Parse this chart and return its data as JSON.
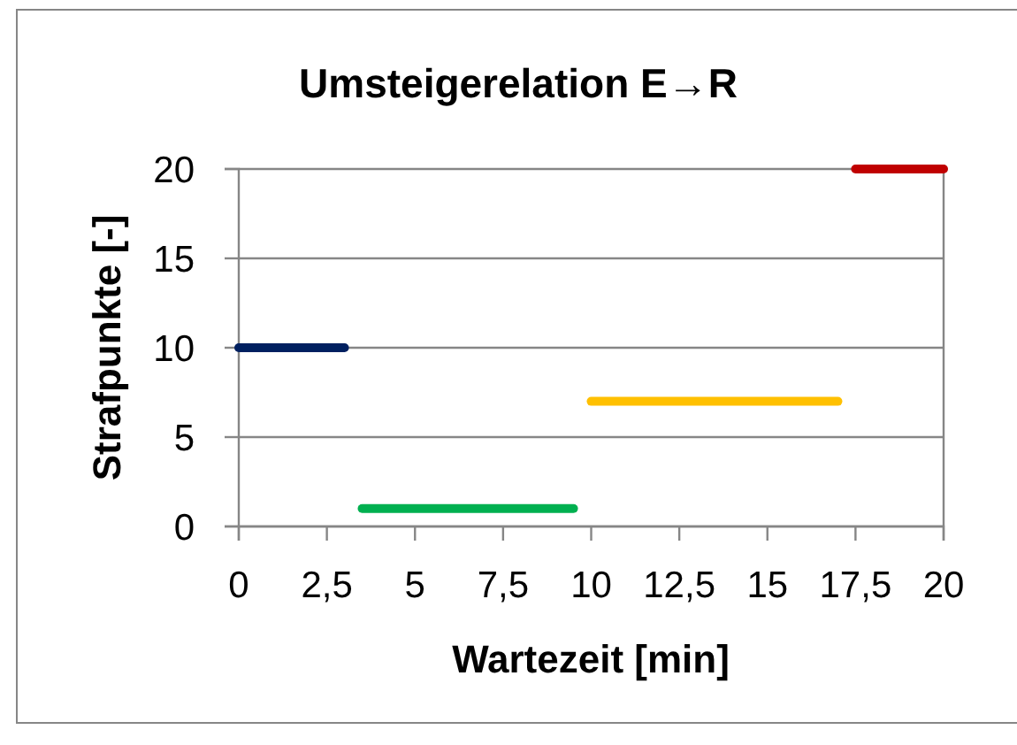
{
  "chart_data": {
    "type": "line",
    "title": "Umsteigerelation E→R",
    "xlabel": "Wartezeit [min]",
    "ylabel": "Strafpunkte [-]",
    "series": [
      {
        "color": "#002060",
        "x": [
          0,
          3
        ],
        "values": [
          10,
          10
        ]
      },
      {
        "color": "#00b050",
        "x": [
          3.5,
          9.5
        ],
        "values": [
          1,
          1
        ]
      },
      {
        "color": "#ffc000",
        "x": [
          10,
          17
        ],
        "values": [
          7,
          7
        ]
      },
      {
        "color": "#c00000",
        "x": [
          17.5,
          20
        ],
        "values": [
          20,
          20
        ]
      }
    ],
    "xlim": [
      0,
      20
    ],
    "xticks": [
      0,
      {
        "value": 2.5,
        "label": "2,5"
      },
      5,
      {
        "value": 7.5,
        "label": "7,5"
      },
      10,
      {
        "value": 12.5,
        "label": "12,5"
      },
      15,
      {
        "value": 17.5,
        "label": "17,5"
      },
      20
    ],
    "ylim": [
      0,
      20
    ],
    "yticks": [
      0,
      5,
      10,
      15,
      20
    ],
    "grid": "y",
    "line_style": "solid"
  }
}
